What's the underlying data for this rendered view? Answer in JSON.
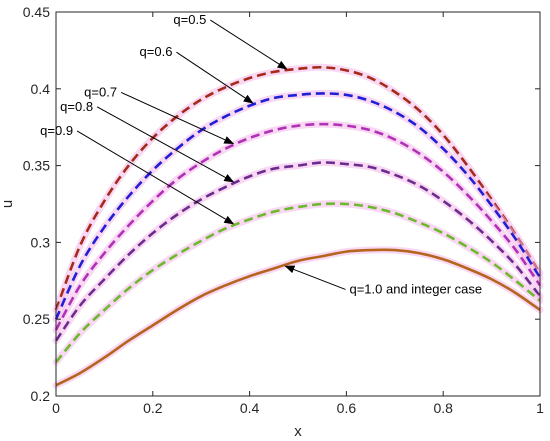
{
  "chart_data": {
    "type": "line",
    "xlabel": "x",
    "ylabel": "u",
    "xlim": [
      0,
      1
    ],
    "ylim": [
      0.2,
      0.45
    ],
    "xticks": [
      "0",
      "0.2",
      "0.4",
      "0.6",
      "0.8",
      "1"
    ],
    "yticks": [
      "0.2",
      "0.25",
      "0.3",
      "0.35",
      "0.4",
      "0.45"
    ],
    "grid": false,
    "x": [
      0,
      0.05,
      0.1,
      0.15,
      0.2,
      0.25,
      0.3,
      0.35,
      0.4,
      0.45,
      0.5,
      0.55,
      0.6,
      0.65,
      0.7,
      0.75,
      0.8,
      0.85,
      0.9,
      0.95,
      1
    ],
    "series": [
      {
        "name": "q=0.5",
        "color": "#a52a1a",
        "style": "dashed",
        "values": [
          0.256,
          0.298,
          0.327,
          0.35,
          0.368,
          0.382,
          0.393,
          0.401,
          0.407,
          0.411,
          0.413,
          0.414,
          0.412,
          0.407,
          0.398,
          0.386,
          0.37,
          0.35,
          0.328,
          0.305,
          0.28
        ]
      },
      {
        "name": "q=0.6",
        "color": "#1f1fd6",
        "style": "dashed",
        "values": [
          0.25,
          0.285,
          0.31,
          0.33,
          0.347,
          0.361,
          0.373,
          0.382,
          0.389,
          0.394,
          0.396,
          0.397,
          0.396,
          0.392,
          0.385,
          0.375,
          0.361,
          0.344,
          0.324,
          0.302,
          0.277
        ]
      },
      {
        "name": "q=0.7",
        "color": "#b030b8",
        "style": "dashed",
        "values": [
          0.243,
          0.272,
          0.293,
          0.311,
          0.327,
          0.341,
          0.352,
          0.361,
          0.368,
          0.373,
          0.376,
          0.377,
          0.376,
          0.373,
          0.367,
          0.358,
          0.346,
          0.331,
          0.314,
          0.295,
          0.272
        ]
      },
      {
        "name": "q=0.8",
        "color": "#6a2d8f",
        "style": "dashed",
        "values": [
          0.236,
          0.259,
          0.276,
          0.292,
          0.306,
          0.318,
          0.328,
          0.336,
          0.343,
          0.348,
          0.35,
          0.352,
          0.351,
          0.349,
          0.344,
          0.337,
          0.327,
          0.315,
          0.301,
          0.285,
          0.265
        ]
      },
      {
        "name": "q=0.9",
        "color": "#6eb82e",
        "style": "dashed",
        "values": [
          0.222,
          0.241,
          0.256,
          0.27,
          0.282,
          0.292,
          0.301,
          0.309,
          0.315,
          0.32,
          0.323,
          0.325,
          0.325,
          0.323,
          0.319,
          0.313,
          0.306,
          0.297,
          0.287,
          0.275,
          0.262
        ]
      },
      {
        "name": "q=1.0 and integer case",
        "color": "#b5651d",
        "style": "solid",
        "values": [
          0.207,
          0.215,
          0.225,
          0.236,
          0.246,
          0.256,
          0.265,
          0.272,
          0.278,
          0.283,
          0.288,
          0.291,
          0.294,
          0.295,
          0.295,
          0.293,
          0.289,
          0.283,
          0.276,
          0.267,
          0.256
        ]
      }
    ],
    "annotations": [
      {
        "text": "q=0.5",
        "series": "q=0.5",
        "point_x": 0.48
      },
      {
        "text": "q=0.6",
        "series": "q=0.6",
        "point_x": 0.41
      },
      {
        "text": "q=0.7",
        "series": "q=0.7",
        "point_x": 0.37
      },
      {
        "text": "q=0.8",
        "series": "q=0.8",
        "point_x": 0.37
      },
      {
        "text": "q=0.9",
        "series": "q=0.9",
        "point_x": 0.37
      },
      {
        "text": "q=1.0 and integer case",
        "series": "q=1.0 and integer case",
        "point_x": 0.47
      }
    ]
  }
}
